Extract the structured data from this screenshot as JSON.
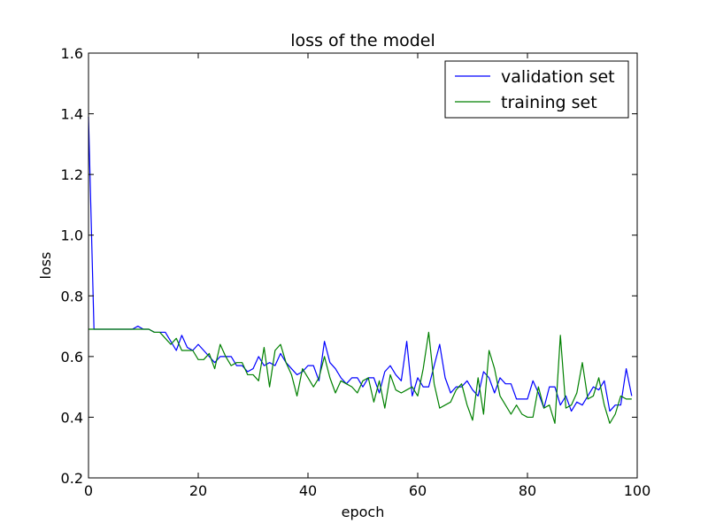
{
  "chart_data": {
    "type": "line",
    "title": "loss of the model",
    "xlabel": "epoch",
    "ylabel": "loss",
    "xlim": [
      0,
      100
    ],
    "ylim": [
      0.2,
      1.6
    ],
    "xticks": [
      0,
      20,
      40,
      60,
      80,
      100
    ],
    "yticks": [
      0.2,
      0.4,
      0.6,
      0.8,
      1.0,
      1.2,
      1.4,
      1.6
    ],
    "xtick_labels": [
      "0",
      "20",
      "40",
      "60",
      "80",
      "100"
    ],
    "ytick_labels": [
      "0.2",
      "0.4",
      "0.6",
      "0.8",
      "1.0",
      "1.2",
      "1.4",
      "1.6"
    ],
    "grid": false,
    "legend": "top-right",
    "series": [
      {
        "name": "validation set",
        "color": "#0000ff",
        "values": [
          1.39,
          0.69,
          0.69,
          0.69,
          0.69,
          0.69,
          0.69,
          0.69,
          0.69,
          0.7,
          0.69,
          0.69,
          0.68,
          0.68,
          0.68,
          0.65,
          0.62,
          0.67,
          0.63,
          0.62,
          0.64,
          0.62,
          0.6,
          0.58,
          0.6,
          0.6,
          0.6,
          0.57,
          0.57,
          0.55,
          0.56,
          0.6,
          0.57,
          0.58,
          0.57,
          0.61,
          0.58,
          0.56,
          0.54,
          0.55,
          0.57,
          0.57,
          0.52,
          0.65,
          0.58,
          0.56,
          0.53,
          0.51,
          0.53,
          0.53,
          0.5,
          0.53,
          0.53,
          0.48,
          0.55,
          0.57,
          0.54,
          0.52,
          0.65,
          0.47,
          0.53,
          0.5,
          0.5,
          0.57,
          0.64,
          0.53,
          0.48,
          0.5,
          0.5,
          0.52,
          0.49,
          0.47,
          0.55,
          0.53,
          0.48,
          0.53,
          0.51,
          0.51,
          0.46,
          0.46,
          0.46,
          0.52,
          0.48,
          0.43,
          0.5,
          0.5,
          0.44,
          0.47,
          0.42,
          0.45,
          0.44,
          0.47,
          0.5,
          0.49,
          0.52,
          0.42,
          0.44,
          0.44,
          0.56,
          0.47
        ]
      },
      {
        "name": "training set",
        "color": "#008000",
        "values": [
          0.69,
          0.69,
          0.69,
          0.69,
          0.69,
          0.69,
          0.69,
          0.69,
          0.69,
          0.69,
          0.69,
          0.69,
          0.68,
          0.68,
          0.66,
          0.64,
          0.66,
          0.62,
          0.62,
          0.62,
          0.59,
          0.59,
          0.61,
          0.56,
          0.64,
          0.6,
          0.57,
          0.58,
          0.58,
          0.54,
          0.54,
          0.52,
          0.63,
          0.5,
          0.62,
          0.64,
          0.58,
          0.54,
          0.47,
          0.56,
          0.53,
          0.5,
          0.53,
          0.6,
          0.53,
          0.48,
          0.52,
          0.51,
          0.5,
          0.48,
          0.52,
          0.53,
          0.45,
          0.52,
          0.43,
          0.54,
          0.49,
          0.48,
          0.49,
          0.5,
          0.47,
          0.56,
          0.68,
          0.51,
          0.43,
          0.44,
          0.45,
          0.49,
          0.51,
          0.44,
          0.39,
          0.53,
          0.41,
          0.62,
          0.56,
          0.47,
          0.44,
          0.41,
          0.44,
          0.41,
          0.4,
          0.4,
          0.5,
          0.43,
          0.44,
          0.38,
          0.67,
          0.43,
          0.44,
          0.48,
          0.58,
          0.46,
          0.47,
          0.53,
          0.44,
          0.38,
          0.41,
          0.47,
          0.46,
          0.46
        ]
      }
    ]
  }
}
